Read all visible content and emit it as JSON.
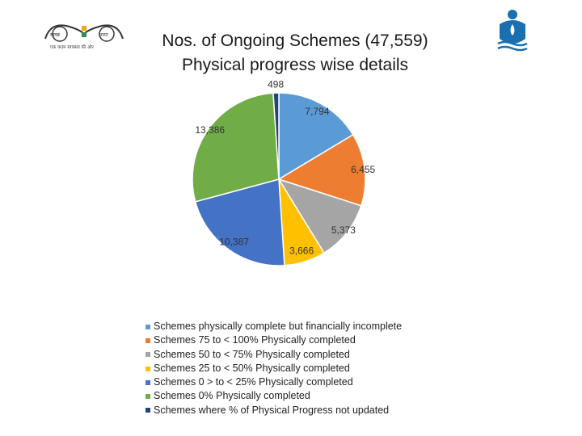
{
  "header": {
    "logo_left": {
      "text_top_left": "स्वच्छ",
      "text_top_right": "भारत",
      "caption": "एक कदम स्वच्छता की ओर"
    }
  },
  "chart_data": {
    "type": "pie",
    "title": "Nos. of Ongoing Schemes (47,559)",
    "subtitle": "Physical progress wise details",
    "slices": [
      {
        "label": "Schemes physically complete but financially incomplete",
        "value": 7794,
        "display": "7,794",
        "color": "#5b9bd5"
      },
      {
        "label": "Schemes 75 to < 100% Physically completed",
        "value": 6455,
        "display": "6,455",
        "color": "#ed7d31"
      },
      {
        "label": "Schemes 50 to < 75% Physically completed",
        "value": 5373,
        "display": "5,373",
        "color": "#a5a5a5"
      },
      {
        "label": "Schemes 25 to < 50% Physically completed",
        "value": 3666,
        "display": "3,666",
        "color": "#ffc000"
      },
      {
        "label": "Schemes 0 > to < 25% Physically completed",
        "value": 10387,
        "display": "10,387",
        "color": "#4472c4"
      },
      {
        "label": "Schemes 0% Physically completed",
        "value": 13386,
        "display": "13,386",
        "color": "#70ad47"
      },
      {
        "label": "Schemes where % of Physical Progress not updated",
        "value": 498,
        "display": "498",
        "color": "#264478"
      }
    ],
    "legend_position": "bottom"
  }
}
